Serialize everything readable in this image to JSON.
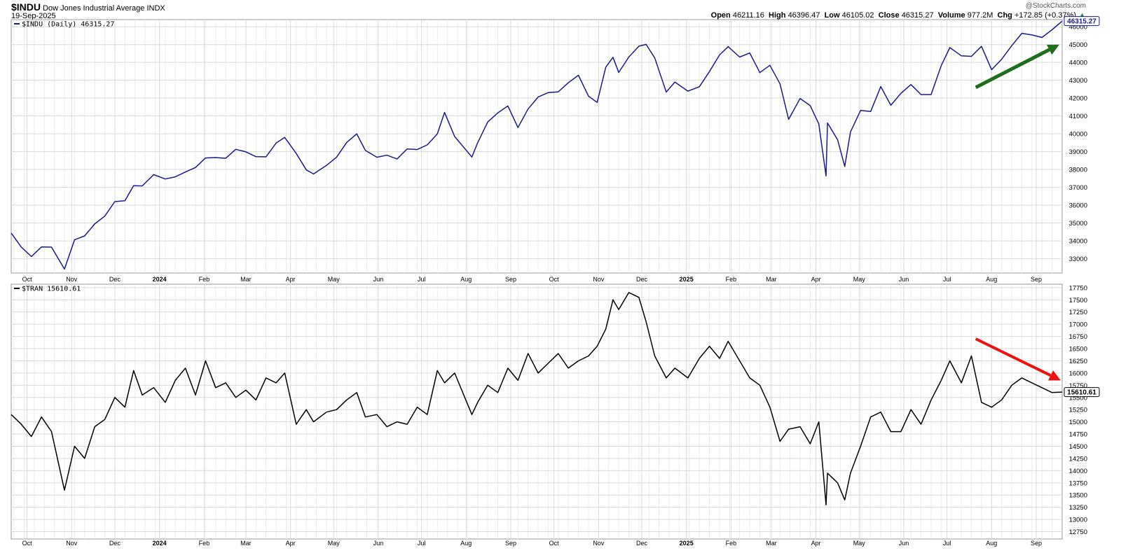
{
  "header": {
    "symbol": "$INDU",
    "name": "Dow Jones Industrial Average INDX",
    "date": "19-Sep-2025",
    "watermark": "@StockCharts.com",
    "open_label": "Open",
    "open": "46211.16",
    "high_label": "High",
    "high": "46396.47",
    "low_label": "Low",
    "low": "46105.02",
    "close_label": "Close",
    "close": "46315.27",
    "volume_label": "Volume",
    "volume": "977.2M",
    "chg_label": "Chg",
    "chg": "+172.85 (+0.37%)"
  },
  "colors": {
    "indu_line": "#1a1a8c",
    "tran_line": "#000000",
    "up_arrow": "#1e6e1e",
    "down_arrow": "#ee1111",
    "grid": "#d9d9d9"
  },
  "chart_data": [
    {
      "type": "line",
      "legend": "$INDU (Daily) 46315.27",
      "last_value_label": "46315.27",
      "ylim": [
        32200,
        46400
      ],
      "yticks": [
        33000,
        34000,
        35000,
        36000,
        37000,
        38000,
        39000,
        40000,
        41000,
        42000,
        43000,
        44000,
        45000,
        46000
      ],
      "xticks": [
        "Oct",
        "Nov",
        "Dec",
        "2024",
        "Feb",
        "Mar",
        "Apr",
        "May",
        "Jun",
        "Jul",
        "Aug",
        "Sep",
        "Oct",
        "Nov",
        "Dec",
        "2025",
        "Feb",
        "Mar",
        "Apr",
        "May",
        "Jun",
        "Jul",
        "Aug",
        "Sep"
      ],
      "grid": true,
      "annotation": "green up arrow (Jul 2025 to Sep 2025)",
      "x": [
        "2023-09-20",
        "2023-09-27",
        "2023-10-04",
        "2023-10-11",
        "2023-10-18",
        "2023-10-27",
        "2023-11-03",
        "2023-11-10",
        "2023-11-17",
        "2023-11-24",
        "2023-12-01",
        "2023-12-08",
        "2023-12-14",
        "2023-12-20",
        "2023-12-28",
        "2024-01-05",
        "2024-01-12",
        "2024-01-19",
        "2024-01-26",
        "2024-02-02",
        "2024-02-09",
        "2024-02-16",
        "2024-02-23",
        "2024-03-01",
        "2024-03-08",
        "2024-03-15",
        "2024-03-22",
        "2024-03-28",
        "2024-04-05",
        "2024-04-12",
        "2024-04-17",
        "2024-04-26",
        "2024-05-03",
        "2024-05-10",
        "2024-05-17",
        "2024-05-23",
        "2024-05-31",
        "2024-06-07",
        "2024-06-14",
        "2024-06-21",
        "2024-06-28",
        "2024-07-05",
        "2024-07-12",
        "2024-07-17",
        "2024-07-24",
        "2024-08-05",
        "2024-08-09",
        "2024-08-16",
        "2024-08-23",
        "2024-08-30",
        "2024-09-06",
        "2024-09-13",
        "2024-09-20",
        "2024-09-27",
        "2024-10-04",
        "2024-10-11",
        "2024-10-18",
        "2024-10-25",
        "2024-10-31",
        "2024-11-06",
        "2024-11-11",
        "2024-11-15",
        "2024-11-22",
        "2024-11-29",
        "2024-12-04",
        "2024-12-10",
        "2024-12-18",
        "2024-12-24",
        "2025-01-02",
        "2025-01-10",
        "2025-01-17",
        "2025-01-24",
        "2025-01-30",
        "2025-02-07",
        "2025-02-14",
        "2025-02-21",
        "2025-02-28",
        "2025-03-07",
        "2025-03-13",
        "2025-03-21",
        "2025-03-28",
        "2025-04-03",
        "2025-04-08",
        "2025-04-09",
        "2025-04-16",
        "2025-04-21",
        "2025-04-25",
        "2025-05-02",
        "2025-05-09",
        "2025-05-16",
        "2025-05-23",
        "2025-05-30",
        "2025-06-06",
        "2025-06-13",
        "2025-06-20",
        "2025-06-27",
        "2025-07-03",
        "2025-07-11",
        "2025-07-18",
        "2025-07-25",
        "2025-08-01",
        "2025-08-08",
        "2025-08-15",
        "2025-08-22",
        "2025-08-29",
        "2025-09-05",
        "2025-09-12",
        "2025-09-19"
      ],
      "y": [
        34440,
        33650,
        33120,
        33660,
        33650,
        32420,
        34060,
        34280,
        34950,
        35390,
        36200,
        36250,
        37090,
        37080,
        37710,
        37470,
        37590,
        37860,
        38110,
        38650,
        38670,
        38630,
        39130,
        38990,
        38720,
        38710,
        39480,
        39800,
        38900,
        37980,
        37750,
        38230,
        38690,
        39510,
        40000,
        39070,
        38690,
        38800,
        38590,
        39150,
        39120,
        39380,
        40000,
        41200,
        39850,
        38700,
        39500,
        40660,
        41170,
        41560,
        40350,
        41390,
        42060,
        42310,
        42350,
        42860,
        43280,
        42110,
        41760,
        43730,
        44290,
        43440,
        44300,
        44910,
        45010,
        44250,
        42340,
        42900,
        42390,
        42640,
        43490,
        44420,
        44880,
        44300,
        44530,
        43430,
        43840,
        42800,
        40810,
        41980,
        41580,
        40550,
        37640,
        40610,
        39670,
        38170,
        40110,
        41310,
        41250,
        42650,
        41600,
        42270,
        42760,
        42200,
        42200,
        43820,
        44830,
        44370,
        44340,
        44900,
        43590,
        44180,
        44940,
        45630,
        45540,
        45400,
        45830,
        46315
      ]
    },
    {
      "type": "line",
      "legend": "$TRAN 15610.61",
      "last_value_label": "15610.61",
      "ylim": [
        12600,
        17820
      ],
      "yticks": [
        12750,
        13000,
        13250,
        13500,
        13750,
        14000,
        14250,
        14500,
        14750,
        15000,
        15250,
        15500,
        15750,
        16000,
        16250,
        16500,
        16750,
        17000,
        17250,
        17500,
        17750
      ],
      "xticks": [
        "Oct",
        "Nov",
        "Dec",
        "2024",
        "Feb",
        "Mar",
        "Apr",
        "May",
        "Jun",
        "Jul",
        "Aug",
        "Sep",
        "Oct",
        "Nov",
        "Dec",
        "2025",
        "Feb",
        "Mar",
        "Apr",
        "May",
        "Jun",
        "Jul",
        "Aug",
        "Sep"
      ],
      "grid": true,
      "annotation": "red down arrow (Jul 2025 to Sep 2025)",
      "x": [
        "2023-09-20",
        "2023-09-27",
        "2023-10-04",
        "2023-10-11",
        "2023-10-18",
        "2023-10-27",
        "2023-11-03",
        "2023-11-10",
        "2023-11-17",
        "2023-11-24",
        "2023-12-01",
        "2023-12-08",
        "2023-12-14",
        "2023-12-20",
        "2023-12-28",
        "2024-01-05",
        "2024-01-12",
        "2024-01-19",
        "2024-01-26",
        "2024-02-02",
        "2024-02-09",
        "2024-02-16",
        "2024-02-23",
        "2024-03-01",
        "2024-03-08",
        "2024-03-15",
        "2024-03-22",
        "2024-03-28",
        "2024-04-05",
        "2024-04-12",
        "2024-04-17",
        "2024-04-26",
        "2024-05-03",
        "2024-05-10",
        "2024-05-17",
        "2024-05-23",
        "2024-05-31",
        "2024-06-07",
        "2024-06-14",
        "2024-06-21",
        "2024-06-28",
        "2024-07-05",
        "2024-07-12",
        "2024-07-17",
        "2024-07-24",
        "2024-08-05",
        "2024-08-09",
        "2024-08-16",
        "2024-08-23",
        "2024-08-30",
        "2024-09-06",
        "2024-09-13",
        "2024-09-20",
        "2024-09-27",
        "2024-10-04",
        "2024-10-11",
        "2024-10-18",
        "2024-10-25",
        "2024-10-31",
        "2024-11-06",
        "2024-11-11",
        "2024-11-15",
        "2024-11-22",
        "2024-11-29",
        "2024-12-04",
        "2024-12-10",
        "2024-12-18",
        "2024-12-24",
        "2025-01-02",
        "2025-01-10",
        "2025-01-17",
        "2025-01-24",
        "2025-01-30",
        "2025-02-07",
        "2025-02-14",
        "2025-02-21",
        "2025-02-28",
        "2025-03-07",
        "2025-03-13",
        "2025-03-21",
        "2025-03-28",
        "2025-04-03",
        "2025-04-08",
        "2025-04-09",
        "2025-04-16",
        "2025-04-21",
        "2025-04-25",
        "2025-05-02",
        "2025-05-09",
        "2025-05-16",
        "2025-05-23",
        "2025-05-30",
        "2025-06-06",
        "2025-06-13",
        "2025-06-20",
        "2025-06-27",
        "2025-07-03",
        "2025-07-11",
        "2025-07-18",
        "2025-07-25",
        "2025-08-01",
        "2025-08-08",
        "2025-08-15",
        "2025-08-22",
        "2025-08-29",
        "2025-09-05",
        "2025-09-12",
        "2025-09-19"
      ],
      "y": [
        15150,
        14950,
        14700,
        15100,
        14800,
        13600,
        14500,
        14250,
        14900,
        15050,
        15500,
        15300,
        16050,
        15550,
        15700,
        15400,
        15850,
        16100,
        15550,
        16250,
        15700,
        15800,
        15500,
        15650,
        15450,
        15900,
        15800,
        16000,
        14950,
        15250,
        15000,
        15200,
        15250,
        15450,
        15600,
        15100,
        15150,
        14900,
        15000,
        14950,
        15300,
        15150,
        16050,
        15800,
        16000,
        15150,
        15400,
        15750,
        15600,
        16100,
        15850,
        16400,
        16000,
        16200,
        16400,
        16100,
        16250,
        16350,
        16550,
        16900,
        17500,
        17300,
        17650,
        17550,
        17050,
        16350,
        15900,
        16100,
        15900,
        16300,
        16550,
        16300,
        16650,
        16250,
        15900,
        15750,
        15300,
        14600,
        14850,
        14900,
        14550,
        15000,
        13300,
        13950,
        13750,
        13400,
        13950,
        14500,
        15100,
        15200,
        14800,
        14800,
        15250,
        14950,
        15450,
        15850,
        16250,
        15800,
        16350,
        15400,
        15300,
        15450,
        15750,
        15900,
        15800,
        15700,
        15600,
        15610
      ]
    }
  ]
}
